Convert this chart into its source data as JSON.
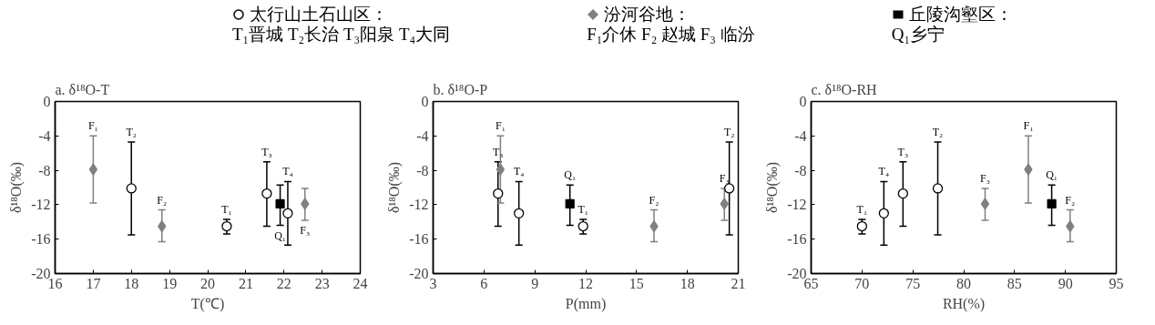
{
  "chart_data": [
    {
      "type": "scatter",
      "title": "a. δ¹⁸O-T",
      "xlabel": "T(℃)",
      "ylabel": "δ¹⁸O(‰)",
      "xlim": [
        16,
        24
      ],
      "xticks": [
        16,
        17,
        18,
        19,
        20,
        21,
        22,
        23,
        24
      ],
      "ylim": [
        -20,
        0
      ],
      "yticks": [
        -20,
        -16,
        -12,
        -8,
        -4,
        0
      ],
      "grid": false,
      "legend": "top",
      "series": [
        {
          "name": "太行山土石山区：\nT₁晋城  T₂长治  T₃阳泉  T₄大同",
          "color": "#000000",
          "marker": "circle",
          "x": [
            20.5,
            18.0,
            21.55,
            22.1
          ],
          "values": [
            -14.5,
            -10.1,
            -10.7,
            -13.0
          ],
          "errors": [
            [
              -15.4,
              -13.7
            ],
            [
              -15.5,
              -4.7
            ],
            [
              -14.5,
              -7.0
            ],
            [
              -16.7,
              -9.3
            ]
          ]
        },
        {
          "name": "汾河谷地：\nF₁介休  F₂ 赵城  F₃ 临汾",
          "color": "#808080",
          "marker": "diamond",
          "x": [
            17.0,
            18.8,
            22.55
          ],
          "values": [
            -7.9,
            -14.5,
            -11.9
          ],
          "errors": [
            [
              -11.8,
              -4.0
            ],
            [
              -16.3,
              -12.6
            ],
            [
              -13.8,
              -10.1
            ]
          ]
        },
        {
          "name": "丘陵沟壑区：\nQ₁乡宁",
          "color": "#000000",
          "marker": "square",
          "x": [
            21.9
          ],
          "values": [
            -11.9
          ],
          "errors": [
            [
              -14.4,
              -9.7
            ]
          ]
        }
      ],
      "annotations": [
        {
          "text": "F₁",
          "x": 17.0,
          "y": -4.0
        },
        {
          "text": "T₂",
          "x": 18.0,
          "y": -4.7
        },
        {
          "text": "F₂",
          "x": 18.8,
          "y": -12.6
        },
        {
          "text": "T₁",
          "x": 20.5,
          "y": -13.7
        },
        {
          "text": "T₃",
          "x": 21.55,
          "y": -7.0
        },
        {
          "text": "T₄",
          "x": 22.1,
          "y": -9.3
        },
        {
          "text": "Q₁",
          "x": 21.9,
          "y": -14.4
        },
        {
          "text": "F₃",
          "x": 22.55,
          "y": -13.8
        }
      ]
    },
    {
      "type": "scatter",
      "title": "b. δ¹⁸O-P",
      "xlabel": "P(mm)",
      "ylabel": "δ¹⁸O(‰)",
      "xlim": [
        3,
        21
      ],
      "xticks": [
        3,
        6,
        9,
        12,
        15,
        18,
        21
      ],
      "ylim": [
        -20,
        0
      ],
      "yticks": [
        -20,
        -16,
        -12,
        -8,
        -4,
        0
      ],
      "grid": false,
      "series": [
        {
          "color": "#000000",
          "marker": "circle",
          "x": [
            11.85,
            20.47,
            6.83,
            8.06
          ],
          "values": [
            -14.5,
            -10.1,
            -10.7,
            -13.0
          ],
          "errors": [
            [
              -15.4,
              -13.7
            ],
            [
              -15.5,
              -4.7
            ],
            [
              -14.5,
              -7.0
            ],
            [
              -16.7,
              -9.3
            ]
          ]
        },
        {
          "color": "#808080",
          "marker": "diamond",
          "x": [
            6.97,
            16.03,
            20.18
          ],
          "values": [
            -7.9,
            -14.5,
            -11.9
          ],
          "errors": [
            [
              -11.8,
              -4.0
            ],
            [
              -16.3,
              -12.6
            ],
            [
              -13.8,
              -10.1
            ]
          ]
        },
        {
          "color": "#000000",
          "marker": "square",
          "x": [
            11.07
          ],
          "values": [
            -11.9
          ],
          "errors": [
            [
              -14.4,
              -9.7
            ]
          ]
        }
      ],
      "annotations": [
        {
          "text": "F₁",
          "x": 6.97,
          "y": -4.0
        },
        {
          "text": "T₃",
          "x": 6.83,
          "y": -7.0
        },
        {
          "text": "T₄",
          "x": 8.06,
          "y": -9.3
        },
        {
          "text": "Q₁",
          "x": 11.07,
          "y": -9.7
        },
        {
          "text": "T₁",
          "x": 11.85,
          "y": -13.7
        },
        {
          "text": "F₂",
          "x": 16.03,
          "y": -12.6
        },
        {
          "text": "F₃",
          "x": 20.18,
          "y": -10.1
        },
        {
          "text": "T₂",
          "x": 20.47,
          "y": -4.7
        }
      ]
    },
    {
      "type": "scatter",
      "title": "c. δ¹⁸O-RH",
      "xlabel": "RH(%)",
      "ylabel": "δ¹⁸O(‰)",
      "xlim": [
        65,
        95
      ],
      "xticks": [
        65,
        70,
        75,
        80,
        85,
        90,
        95
      ],
      "ylim": [
        -20,
        0
      ],
      "yticks": [
        -20,
        -16,
        -12,
        -8,
        -4,
        0
      ],
      "grid": false,
      "series": [
        {
          "color": "#000000",
          "marker": "circle",
          "x": [
            70.0,
            77.45,
            74.03,
            72.15
          ],
          "values": [
            -14.5,
            -10.1,
            -10.7,
            -13.0
          ],
          "errors": [
            [
              -15.4,
              -13.7
            ],
            [
              -15.5,
              -4.7
            ],
            [
              -14.5,
              -7.0
            ],
            [
              -16.7,
              -9.3
            ]
          ]
        },
        {
          "color": "#808080",
          "marker": "diamond",
          "x": [
            86.35,
            90.46,
            82.1
          ],
          "values": [
            -7.9,
            -14.5,
            -11.9
          ],
          "errors": [
            [
              -11.8,
              -4.0
            ],
            [
              -16.3,
              -12.6
            ],
            [
              -13.8,
              -10.1
            ]
          ]
        },
        {
          "color": "#000000",
          "marker": "square",
          "x": [
            88.65
          ],
          "values": [
            -11.9
          ],
          "errors": [
            [
              -14.4,
              -9.7
            ]
          ]
        }
      ],
      "annotations": [
        {
          "text": "T₁",
          "x": 70.0,
          "y": -13.7
        },
        {
          "text": "T₄",
          "x": 72.15,
          "y": -9.3
        },
        {
          "text": "T₃",
          "x": 74.03,
          "y": -7.0
        },
        {
          "text": "T₂",
          "x": 77.45,
          "y": -4.7
        },
        {
          "text": "F₃",
          "x": 82.1,
          "y": -10.1
        },
        {
          "text": "F₁",
          "x": 86.35,
          "y": -4.0
        },
        {
          "text": "Q₁",
          "x": 88.65,
          "y": -9.7
        },
        {
          "text": "F₂",
          "x": 90.46,
          "y": -12.6
        }
      ]
    }
  ]
}
